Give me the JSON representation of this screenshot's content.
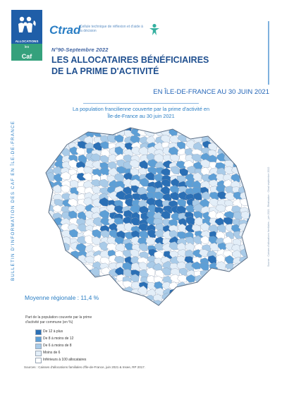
{
  "logo": {
    "caf_name": "ALLOCATIONS FAMILIALES",
    "subbrand_prefix": "les",
    "subbrand_name": "Caf",
    "subbrand_region": "en Île-de-France",
    "brand_color": "#1f5ea8",
    "sub_color": "#35a17c"
  },
  "ctrad": {
    "name": "Ctrad",
    "tagline": "Cellule technique de réflexion et d'aide à la décision"
  },
  "header": {
    "issue": "N°90-Septembre 2022",
    "title_line1": "LES ALLOCATAIRES BÉNÉFICIAIRES",
    "title_line2": "DE LA PRIME D'ACTIVITÉ"
  },
  "region_date": "EN ÎLE-DE-FRANCE AU 30 JUIN 2021",
  "map": {
    "title_line1": "La population francilienne couverte par la prime d'activité en",
    "title_line2": "Île-de-France au 30 juin 2021"
  },
  "side_text": "BULLETIN D'INFORMATION DES CAF EN ÎLE-DE-FRANCE",
  "credits_text": "Source : Caisses d'allocations familiales - juin 2021 - Réalisation : Ctrad septembre 2022",
  "moyenne": "Moyenne régionale : 11,4 %",
  "legend": {
    "head_line1": "Part de la population couverte par la prime",
    "head_line2": "d'activité par commune (en %)",
    "items": [
      {
        "label": "De 12 à plus",
        "color": "#2a6fb5"
      },
      {
        "label": "De 8 à moins de 12",
        "color": "#5d9fd6"
      },
      {
        "label": "De 6 à moins de 8",
        "color": "#a9cbe8"
      },
      {
        "label": "Moins de 6",
        "color": "#e3eef8"
      },
      {
        "label": "Inférieurs à 100 allocataires",
        "color": "#ffffff"
      }
    ]
  },
  "sources": "Sources : Caisses d'allocations familiales d'Île-de-France, juin 2021 & Insee, RP 2017."
}
